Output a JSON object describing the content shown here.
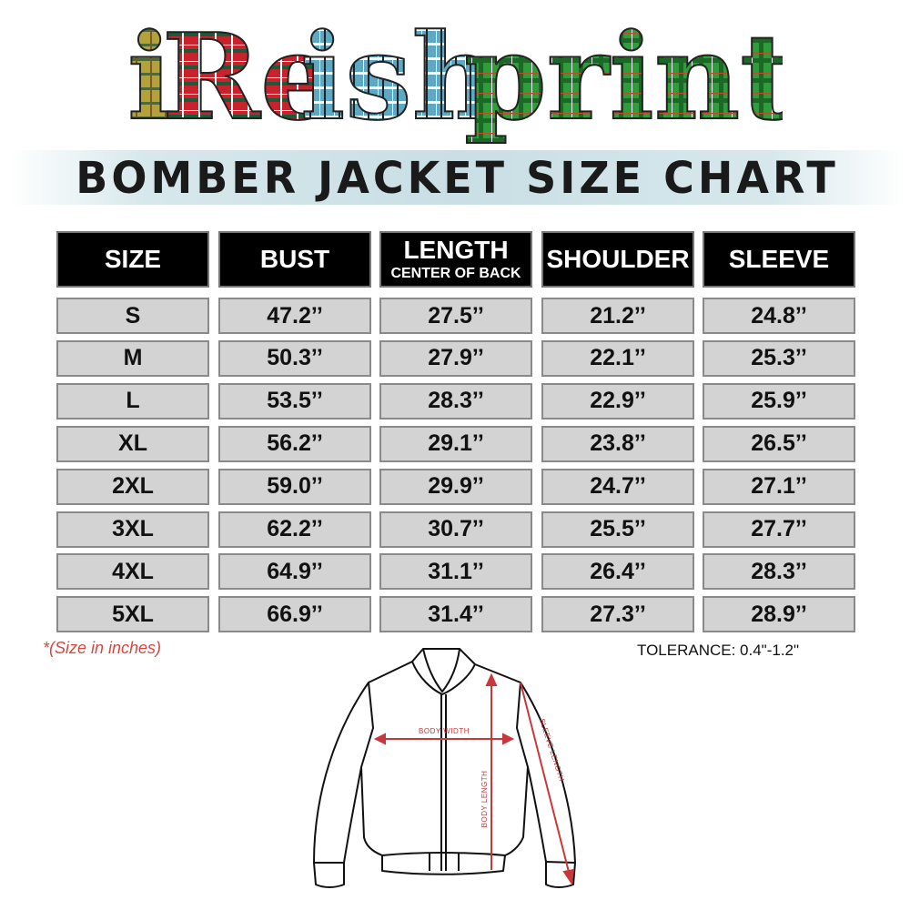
{
  "logo": {
    "text": "iReishprint",
    "colors": [
      "#b5a13a",
      "#c8232c",
      "#5fa8c4",
      "#2a9a3a"
    ]
  },
  "title": "BOMBER JACKET SIZE CHART",
  "table": {
    "headers": [
      {
        "label": "SIZE",
        "sub": ""
      },
      {
        "label": "BUST",
        "sub": ""
      },
      {
        "label": "LENGTH",
        "sub": "CENTER OF BACK"
      },
      {
        "label": "SHOULDER",
        "sub": ""
      },
      {
        "label": "SLEEVE",
        "sub": ""
      }
    ],
    "rows": [
      [
        "S",
        "47.2’’",
        "27.5’’",
        "21.2’’",
        "24.8’’"
      ],
      [
        "M",
        "50.3’’",
        "27.9’’",
        "22.1’’",
        "25.3’’"
      ],
      [
        "L",
        "53.5’’",
        "28.3’’",
        "22.9’’",
        "25.9’’"
      ],
      [
        "XL",
        "56.2’’",
        "29.1’’",
        "23.8’’",
        "26.5’’"
      ],
      [
        "2XL",
        "59.0’’",
        "29.9’’",
        "24.7’’",
        "27.1’’"
      ],
      [
        "3XL",
        "62.2’’",
        "30.7’’",
        "25.5’’",
        "27.7’’"
      ],
      [
        "4XL",
        "64.9’’",
        "31.1’’",
        "26.4’’",
        "28.3’’"
      ],
      [
        "5XL",
        "66.9’’",
        "31.4’’",
        "27.3’’",
        "28.9’’"
      ]
    ]
  },
  "note": "*(Size in inches)",
  "tolerance": "TOLERANCE: 0.4\"-1.2\"",
  "diagram": {
    "body_width": "BODY WIDTH",
    "body_length": "BODY LENGTH",
    "sleeve_length": "SLEEVE LENGTH",
    "accent": "#c8383a"
  }
}
